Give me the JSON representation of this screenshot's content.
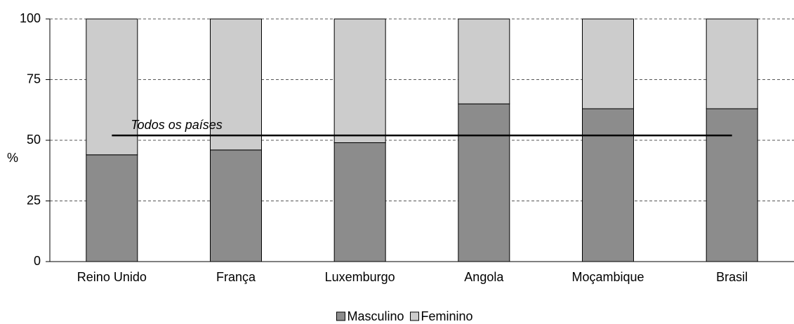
{
  "chart_data": {
    "type": "stacked_bar",
    "categories": [
      "Reino Unido",
      "França",
      "Luxemburgo",
      "Angola",
      "Moçambique",
      "Brasil"
    ],
    "series": [
      {
        "name": "Masculino",
        "color": "#8c8c8c",
        "values": [
          44,
          46,
          49,
          65,
          63,
          63
        ]
      },
      {
        "name": "Feminino",
        "color": "#cccccc",
        "values": [
          56,
          54,
          51,
          35,
          37,
          37
        ]
      }
    ],
    "y_label": "%",
    "ylim": [
      0,
      100
    ],
    "yticks": [
      0,
      25,
      50,
      75,
      100
    ],
    "grid": true,
    "reference_line": {
      "label": "Todos os países",
      "value": 52
    },
    "legend": "bottom"
  }
}
